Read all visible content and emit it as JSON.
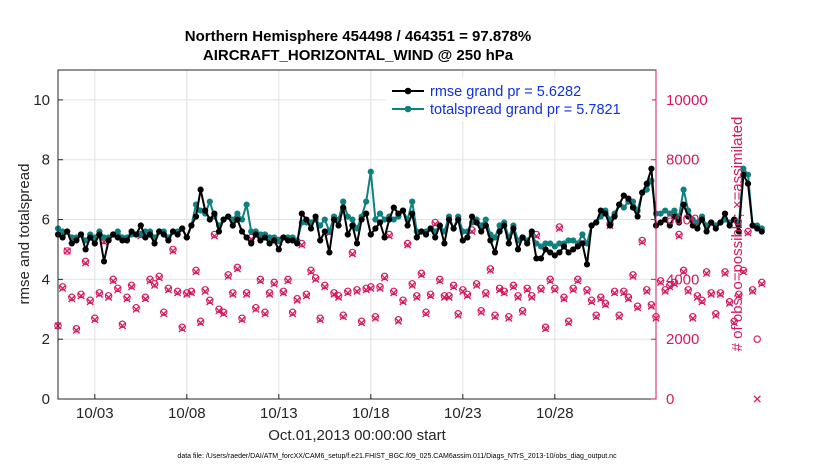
{
  "chart_data": {
    "type": "line",
    "title_line1": "Northern Hemisphere 454498 / 464351 = 97.878%",
    "title_line2": "AIRCRAFT_HORIZONTAL_WIND @ 250 hPa",
    "xlabel": "Oct.01,2013 00:00:00 start",
    "ylabel": "rmse and totalspread",
    "ylabel_right": "# of obs: o=possible; ×=assimilated",
    "footer": "data file: /Users/raeder/DAI/ATM_forcXX/CAM6_setup/f.e21.FHIST_BGC.f09_025.CAM6assim.011/Diags_NTrS_2013-10/obs_diag_output.nc",
    "xlim": [
      1,
      33.5
    ],
    "ylim": [
      0,
      11
    ],
    "ylim_right": [
      0,
      11000
    ],
    "xticks": [
      {
        "value": 3,
        "label": "10/03"
      },
      {
        "value": 8,
        "label": "10/08"
      },
      {
        "value": 13,
        "label": "10/13"
      },
      {
        "value": 18,
        "label": "10/18"
      },
      {
        "value": 23,
        "label": "10/23"
      },
      {
        "value": 28,
        "label": "10/28"
      }
    ],
    "yticks": [
      {
        "value": 0,
        "label": "0"
      },
      {
        "value": 2,
        "label": "2"
      },
      {
        "value": 4,
        "label": "4"
      },
      {
        "value": 6,
        "label": "6"
      },
      {
        "value": 8,
        "label": "8"
      },
      {
        "value": 10,
        "label": "10"
      }
    ],
    "yticks_right": [
      {
        "value": 0,
        "label": "0"
      },
      {
        "value": 2000,
        "label": "2000"
      },
      {
        "value": 4000,
        "label": "4000"
      },
      {
        "value": 6000,
        "label": "6000"
      },
      {
        "value": 8000,
        "label": "8000"
      },
      {
        "value": 10000,
        "label": "10000"
      }
    ],
    "legend": {
      "position": "top-right",
      "entries": [
        "rmse grand pr = 5.6282",
        "totalspread grand pr = 5.7821"
      ]
    },
    "series": [
      {
        "name": "rmse grand pr = 5.6282",
        "axis": "left",
        "color": "#000000",
        "x_start": 1.0,
        "x_step": 0.25,
        "values": [
          5.5,
          5.4,
          5.6,
          5.2,
          5.3,
          5.5,
          5.0,
          5.4,
          5.2,
          5.5,
          4.6,
          5.3,
          5.5,
          5.4,
          5.3,
          5.3,
          5.6,
          5.5,
          5.8,
          5.4,
          5.5,
          5.2,
          5.6,
          5.5,
          5.3,
          5.6,
          5.5,
          5.7,
          5.4,
          5.8,
          6.1,
          7.0,
          6.3,
          6.0,
          6.2,
          5.6,
          6.0,
          6.1,
          5.8,
          6.0,
          5.6,
          5.4,
          5.2,
          5.5,
          5.3,
          5.4,
          5.2,
          5.3,
          5.0,
          5.4,
          5.3,
          5.3,
          5.2,
          6.2,
          6.0,
          5.7,
          6.1,
          5.3,
          5.6,
          4.9,
          6.0,
          5.8,
          6.4,
          5.5,
          5.8,
          5.2,
          6.0,
          6.2,
          5.5,
          5.7,
          5.9,
          5.4,
          6.0,
          6.4,
          6.2,
          6.3,
          5.8,
          6.2,
          5.4,
          5.6,
          5.5,
          5.7,
          5.4,
          5.8,
          5.2,
          6.0,
          5.7,
          6.0,
          5.3,
          5.4,
          6.1,
          5.9,
          5.6,
          5.8,
          5.3,
          4.9,
          5.6,
          5.8,
          5.2,
          5.7,
          5.0,
          5.4,
          5.2,
          5.6,
          4.7,
          4.7,
          5.0,
          4.9,
          4.8,
          4.9,
          5.1,
          4.9,
          5.0,
          5.1,
          5.2,
          4.5,
          5.8,
          5.9,
          6.3,
          6.2,
          5.8,
          6.1,
          6.5,
          6.8,
          6.7,
          6.4,
          6.1,
          6.9,
          7.2,
          7.7,
          5.8,
          5.9,
          6.0,
          5.8,
          6.1,
          5.9,
          6.5,
          6.1,
          5.8,
          5.7,
          6.0,
          5.6,
          5.9,
          5.7,
          5.9,
          6.2,
          5.8,
          6.0,
          5.6,
          7.5,
          7.2,
          5.8,
          5.7,
          5.6
        ]
      },
      {
        "name": "totalspread grand pr = 5.7821",
        "axis": "left",
        "color": "#0f8080",
        "x_start": 1.0,
        "x_step": 0.25,
        "values": [
          5.7,
          5.6,
          5.6,
          5.4,
          5.4,
          5.5,
          5.3,
          5.5,
          5.4,
          5.6,
          5.4,
          5.4,
          5.5,
          5.6,
          5.4,
          5.4,
          5.5,
          5.5,
          5.5,
          5.6,
          5.6,
          5.4,
          5.6,
          5.6,
          5.4,
          5.6,
          5.6,
          5.7,
          5.4,
          5.8,
          6.5,
          6.3,
          6.2,
          6.6,
          6.1,
          5.8,
          6.0,
          6.1,
          6.0,
          6.2,
          6.0,
          6.5,
          5.6,
          5.6,
          5.5,
          5.5,
          5.4,
          5.4,
          5.3,
          5.4,
          5.4,
          5.4,
          5.3,
          5.9,
          5.9,
          5.9,
          6.0,
          5.8,
          6.0,
          5.6,
          6.1,
          6.0,
          6.6,
          6.1,
          6.0,
          5.7,
          6.1,
          6.6,
          7.6,
          6.0,
          6.2,
          6.0,
          6.1,
          6.0,
          6.1,
          6.3,
          6.0,
          6.6,
          5.6,
          5.6,
          5.6,
          5.7,
          5.6,
          5.8,
          5.6,
          6.1,
          5.7,
          6.1,
          5.6,
          5.6,
          5.9,
          6.0,
          5.8,
          6.0,
          5.5,
          5.4,
          5.8,
          5.9,
          5.4,
          5.8,
          5.3,
          5.4,
          5.3,
          5.5,
          5.2,
          5.1,
          5.2,
          5.2,
          5.1,
          5.2,
          5.2,
          5.3,
          5.3,
          5.2,
          5.5,
          5.2,
          5.8,
          5.9,
          6.1,
          6.3,
          6.0,
          6.2,
          6.5,
          6.4,
          6.6,
          6.6,
          6.3,
          6.9,
          7.0,
          7.3,
          6.2,
          6.2,
          6.3,
          6.2,
          6.3,
          6.1,
          7.0,
          6.3,
          6.0,
          5.9,
          6.1,
          5.8,
          5.9,
          5.8,
          5.9,
          6.0,
          5.9,
          6.0,
          5.8,
          7.7,
          7.5,
          5.8,
          5.8,
          5.7
        ]
      },
      {
        "name": "obs possible",
        "axis": "right",
        "marker": "circle",
        "color": "#d6175f",
        "x_start": 1.0,
        "x_step": 0.25,
        "values": [
          2450,
          3750,
          4950,
          3400,
          2350,
          3500,
          4600,
          3300,
          2700,
          3550,
          5300,
          3450,
          4000,
          3700,
          2500,
          3400,
          3800,
          3050,
          5500,
          3400,
          4000,
          3850,
          4100,
          2900,
          3700,
          5000,
          3600,
          2400,
          3550,
          3600,
          4300,
          2600,
          3650,
          3300,
          5500,
          3000,
          2900,
          4150,
          3550,
          4400,
          2700,
          3550,
          5400,
          3050,
          4000,
          2900,
          3550,
          3900,
          5300,
          3600,
          4000,
          2900,
          3350,
          5200,
          3500,
          4300,
          4050,
          2700,
          3800,
          5600,
          3550,
          3450,
          2800,
          3600,
          4900,
          3650,
          2600,
          3700,
          3750,
          2750,
          3750,
          4100,
          5500,
          3600,
          2650,
          3300,
          5200,
          3850,
          3450,
          4200,
          2900,
          3500,
          5900,
          4000,
          3450,
          3450,
          3800,
          2850,
          3650,
          3500,
          5650,
          3850,
          2950,
          3550,
          4350,
          2800,
          3700,
          3600,
          2750,
          3800,
          3450,
          2950,
          3700,
          3450,
          5500,
          3700,
          2400,
          4000,
          3700,
          5750,
          3400,
          2600,
          3700,
          4000,
          5300,
          3650,
          3300,
          2800,
          3400,
          3200,
          5850,
          3600,
          2800,
          3600,
          3400,
          4150,
          3100,
          5300,
          3650,
          3150,
          2750,
          3950,
          3650,
          3800,
          3900,
          5500,
          4300,
          3650,
          2750,
          3450,
          3300,
          4250,
          3550,
          2850,
          3550,
          4250,
          3250,
          2600,
          3500,
          4300,
          5600,
          3650,
          2000,
          3900
        ]
      },
      {
        "name": "obs assimilated",
        "axis": "right",
        "marker": "x",
        "color": "#d6175f",
        "x_start": 1.0,
        "x_step": 0.25,
        "values": [
          2450,
          3700,
          4950,
          3350,
          2300,
          3450,
          4550,
          3250,
          2650,
          3500,
          5250,
          3400,
          3950,
          3650,
          2450,
          3350,
          3750,
          3000,
          5450,
          3350,
          3950,
          3800,
          4050,
          2850,
          3650,
          4950,
          3550,
          2350,
          3500,
          3550,
          4250,
          2550,
          3600,
          3250,
          5450,
          2950,
          2850,
          4100,
          3500,
          4350,
          2650,
          3500,
          5350,
          3000,
          3950,
          2850,
          3500,
          3850,
          5250,
          3550,
          3950,
          2850,
          3300,
          5150,
          3450,
          4250,
          4000,
          2650,
          3750,
          5550,
          3500,
          3400,
          2750,
          3550,
          4850,
          3600,
          2550,
          3650,
          3700,
          2700,
          3700,
          4050,
          5450,
          3550,
          2600,
          3250,
          5150,
          3800,
          3400,
          4150,
          2850,
          3450,
          5850,
          3950,
          3400,
          3400,
          3750,
          2800,
          3600,
          3450,
          5600,
          3800,
          2900,
          3500,
          4300,
          2750,
          3650,
          3550,
          2700,
          3750,
          3400,
          2900,
          3650,
          3400,
          5450,
          3650,
          2350,
          3950,
          3650,
          5700,
          3350,
          2550,
          3650,
          3950,
          5250,
          3600,
          3250,
          2750,
          3350,
          3150,
          5800,
          3550,
          2750,
          3550,
          3350,
          4100,
          3050,
          5250,
          3600,
          3100,
          2700,
          3900,
          3600,
          3750,
          3850,
          5450,
          4250,
          3600,
          2700,
          3400,
          3250,
          4200,
          3500,
          2800,
          3500,
          4200,
          3200,
          2550,
          3450,
          4250,
          5550,
          3600,
          0,
          3850
        ]
      }
    ]
  }
}
